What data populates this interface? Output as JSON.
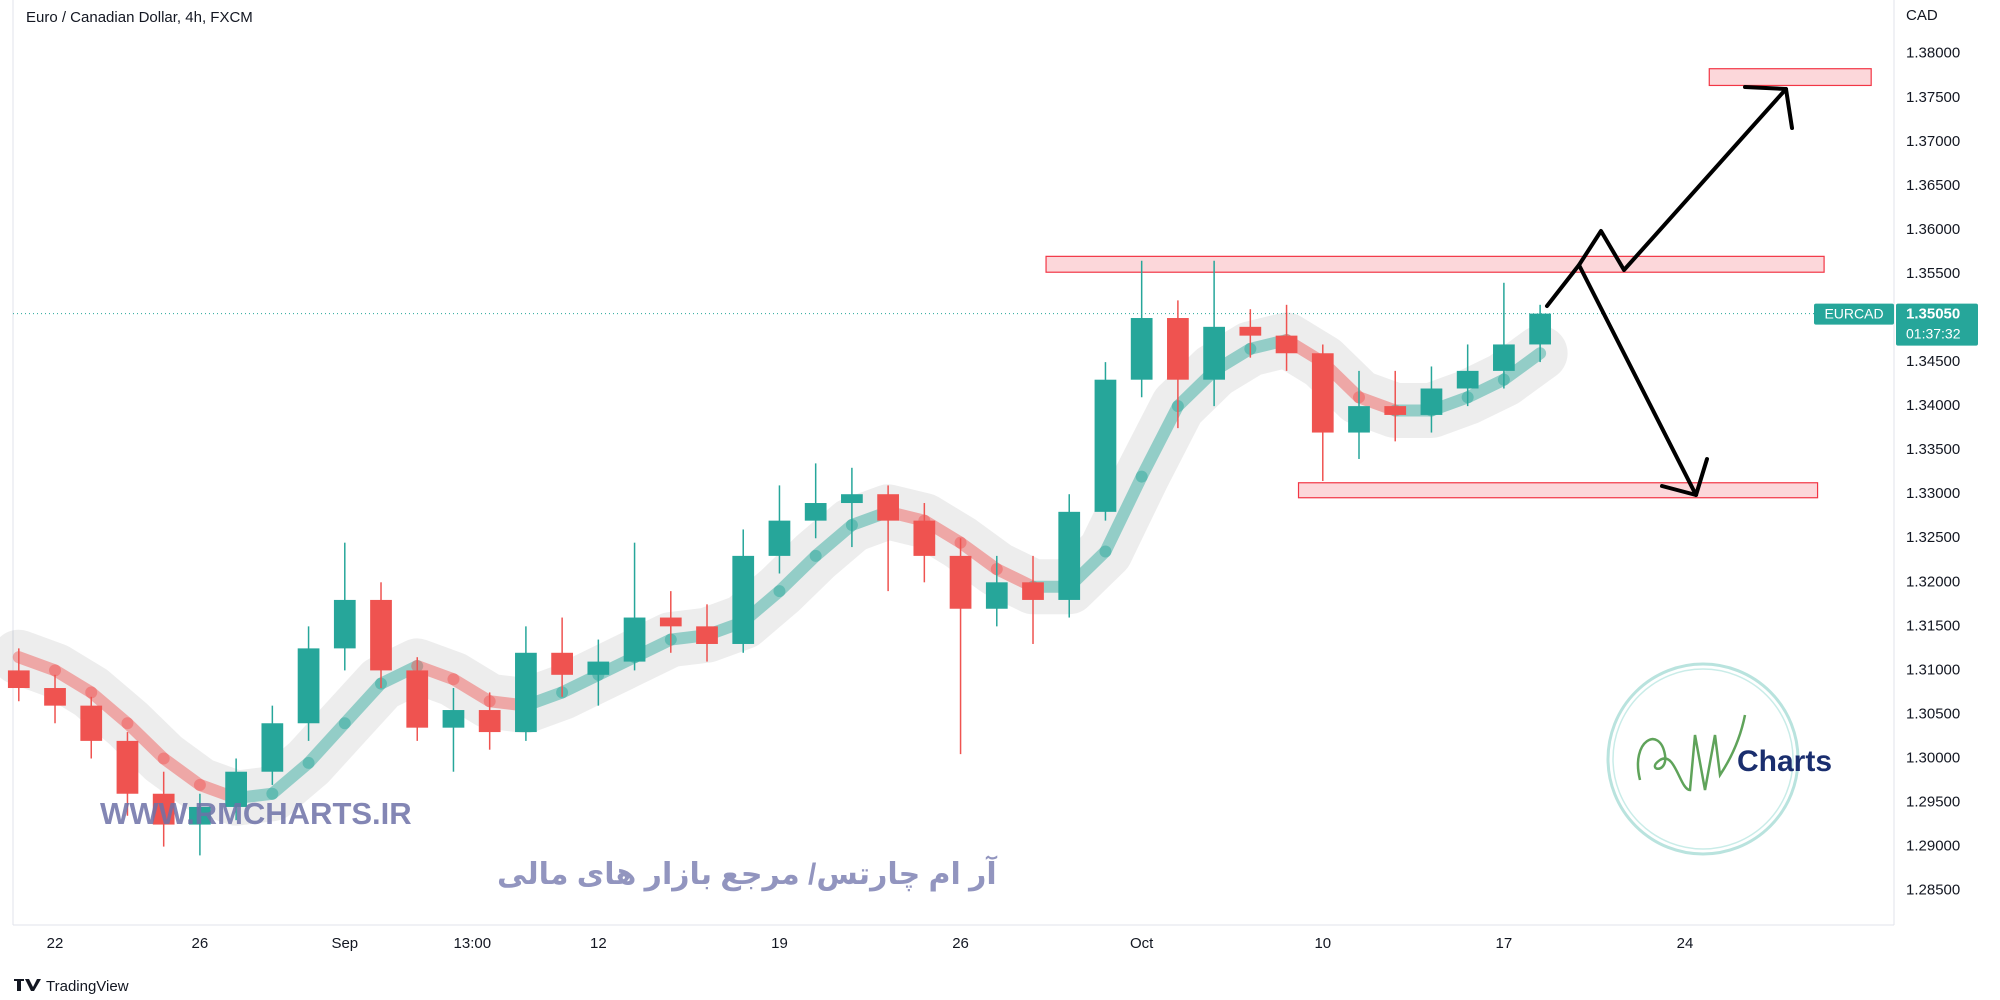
{
  "chart_data": {
    "type": "candlestick",
    "title": "Euro / Canadian Dollar, 4h, FXCM",
    "y_axis_unit": "CAD",
    "x": [
      -1,
      0,
      1,
      2,
      3,
      4,
      5,
      6,
      7,
      8,
      9,
      10,
      11,
      12,
      13,
      14,
      15,
      16,
      17,
      18,
      19,
      20,
      21,
      22,
      23,
      24,
      25,
      26,
      27,
      28,
      29,
      30,
      31,
      32,
      33,
      34,
      35,
      36,
      37,
      38,
      39,
      40,
      41
    ],
    "open": [
      1.31,
      1.308,
      1.306,
      1.302,
      1.296,
      1.2925,
      1.2945,
      1.2985,
      1.304,
      1.3125,
      1.318,
      1.31,
      1.3035,
      1.3055,
      1.303,
      1.312,
      1.3095,
      1.311,
      1.316,
      1.315,
      1.313,
      1.323,
      1.327,
      1.329,
      1.33,
      1.327,
      1.323,
      1.317,
      1.32,
      1.318,
      1.328,
      1.343,
      1.35,
      1.343,
      1.349,
      1.348,
      1.346,
      1.337,
      1.34,
      1.339,
      1.342,
      1.344,
      1.347
    ],
    "high": [
      1.3125,
      1.3095,
      1.307,
      1.303,
      1.2985,
      1.296,
      1.3,
      1.306,
      1.315,
      1.3245,
      1.32,
      1.3115,
      1.308,
      1.3075,
      1.315,
      1.316,
      1.3135,
      1.3245,
      1.319,
      1.3175,
      1.326,
      1.331,
      1.3335,
      1.333,
      1.331,
      1.329,
      1.325,
      1.323,
      1.323,
      1.33,
      1.345,
      1.3565,
      1.352,
      1.3565,
      1.351,
      1.3515,
      1.347,
      1.344,
      1.344,
      1.3445,
      1.347,
      1.354,
      1.3515
    ],
    "low": [
      1.3065,
      1.304,
      1.3,
      1.2935,
      1.29,
      1.289,
      1.293,
      1.297,
      1.302,
      1.31,
      1.308,
      1.302,
      1.2985,
      1.301,
      1.302,
      1.307,
      1.306,
      1.31,
      1.312,
      1.311,
      1.312,
      1.321,
      1.325,
      1.324,
      1.319,
      1.32,
      1.3005,
      1.315,
      1.313,
      1.316,
      1.327,
      1.341,
      1.3375,
      1.34,
      1.3455,
      1.344,
      1.3315,
      1.334,
      1.336,
      1.337,
      1.34,
      1.342,
      1.345
    ],
    "close": [
      1.308,
      1.306,
      1.302,
      1.296,
      1.2925,
      1.2945,
      1.2985,
      1.304,
      1.3125,
      1.318,
      1.31,
      1.3035,
      1.3055,
      1.303,
      1.312,
      1.3095,
      1.311,
      1.316,
      1.315,
      1.313,
      1.323,
      1.327,
      1.329,
      1.33,
      1.327,
      1.323,
      1.317,
      1.32,
      1.318,
      1.328,
      1.343,
      1.35,
      1.343,
      1.349,
      1.348,
      1.346,
      1.337,
      1.34,
      1.339,
      1.342,
      1.344,
      1.347,
      1.3505
    ],
    "moving_average": [
      1.3115,
      1.31,
      1.3075,
      1.304,
      1.3,
      1.297,
      1.2955,
      1.296,
      1.2995,
      1.304,
      1.3085,
      1.3105,
      1.309,
      1.3065,
      1.306,
      1.3075,
      1.3095,
      1.3115,
      1.3135,
      1.314,
      1.3155,
      1.319,
      1.323,
      1.3265,
      1.328,
      1.327,
      1.3245,
      1.3215,
      1.3195,
      1.3195,
      1.3235,
      1.332,
      1.34,
      1.344,
      1.3465,
      1.3475,
      1.345,
      1.341,
      1.3395,
      1.3395,
      1.341,
      1.343,
      1.346
    ],
    "up_color": "#26a69a",
    "down_color": "#ef5350",
    "xlim": [
      -1.16,
      50.77
    ],
    "xticks": [
      {
        "value": 0,
        "label": "22"
      },
      {
        "value": 4,
        "label": "26"
      },
      {
        "value": 8,
        "label": "Sep"
      },
      {
        "value": 11.52,
        "label": "13:00"
      },
      {
        "value": 15,
        "label": "12"
      },
      {
        "value": 20,
        "label": "19"
      },
      {
        "value": 25,
        "label": "26"
      },
      {
        "value": 30,
        "label": "Oct"
      },
      {
        "value": 35,
        "label": "10"
      },
      {
        "value": 40,
        "label": "17"
      },
      {
        "value": 45,
        "label": "24"
      }
    ],
    "ylim": [
      1.2811,
      1.3861
    ],
    "yticks": [
      {
        "value": 1.285,
        "label": "1.28500"
      },
      {
        "value": 1.29,
        "label": "1.29000"
      },
      {
        "value": 1.295,
        "label": "1.29500"
      },
      {
        "value": 1.3,
        "label": "1.30000"
      },
      {
        "value": 1.305,
        "label": "1.30500"
      },
      {
        "value": 1.31,
        "label": "1.31000"
      },
      {
        "value": 1.315,
        "label": "1.31500"
      },
      {
        "value": 1.32,
        "label": "1.32000"
      },
      {
        "value": 1.325,
        "label": "1.32500"
      },
      {
        "value": 1.33,
        "label": "1.33000"
      },
      {
        "value": 1.335,
        "label": "1.33500"
      },
      {
        "value": 1.34,
        "label": "1.34000"
      },
      {
        "value": 1.345,
        "label": "1.34500"
      },
      {
        "value": 1.35,
        "label": "1.35000"
      },
      {
        "value": 1.355,
        "label": "1.35500"
      },
      {
        "value": 1.36,
        "label": "1.36000"
      },
      {
        "value": 1.365,
        "label": "1.36500"
      },
      {
        "value": 1.37,
        "label": "1.37000"
      },
      {
        "value": 1.375,
        "label": "1.37500"
      },
      {
        "value": 1.38,
        "label": "1.38000"
      }
    ],
    "grid": false,
    "zones": [
      {
        "x_from": 45.67,
        "x_to": 50.14,
        "price_low": 1.3764,
        "price_high": 1.3783
      },
      {
        "x_from": 27.36,
        "x_to": 48.84,
        "price_low": 1.3552,
        "price_high": 1.357
      },
      {
        "x_from": 34.33,
        "x_to": 48.66,
        "price_low": 1.3296,
        "price_high": 1.3313
      }
    ],
    "last_price": {
      "symbol": "EURCAD",
      "value": 1.3505,
      "label": "1.35050",
      "countdown": "01:37:32"
    }
  },
  "watermark": {
    "site": "WWW.RMCHARTS.IR",
    "slogan": "آر ام چارتس/ مرجع بازار های مالی",
    "logo_text": "Charts"
  },
  "footer": {
    "brand": "TradingView"
  }
}
